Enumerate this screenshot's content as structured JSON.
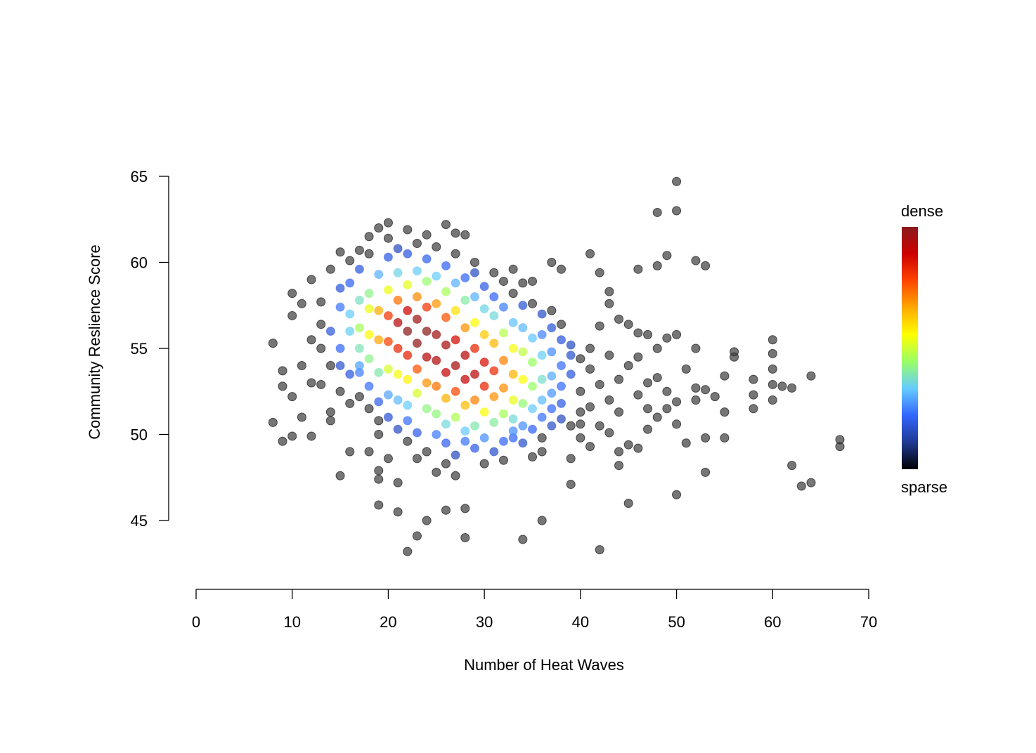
{
  "chart_data": {
    "type": "scatter",
    "title": "",
    "xlabel": "Number of Heat Waves",
    "ylabel": "Community Reslience Score",
    "xlim": [
      0,
      70
    ],
    "ylim": [
      45,
      65
    ],
    "x_ticks": [
      0,
      10,
      20,
      30,
      40,
      50,
      60,
      70
    ],
    "y_ticks": [
      45,
      50,
      55,
      60,
      65
    ],
    "x_tick_labels": [
      "0",
      "10",
      "20",
      "30",
      "40",
      "50",
      "60",
      "70"
    ],
    "y_tick_labels": [
      "45",
      "50",
      "55",
      "60",
      "65"
    ],
    "grid": false,
    "color_encoding": "point density",
    "legend": {
      "placement": "right",
      "top_label": "dense",
      "bottom_label": "sparse",
      "colors": [
        "#000000",
        "#1f3a93",
        "#3366ff",
        "#66ccff",
        "#99ff66",
        "#ffff00",
        "#ffaa00",
        "#ff4400",
        "#cc0000",
        "#8b1a1a"
      ]
    },
    "density_centers": [
      {
        "x": 22,
        "y": 56.5,
        "spread_x": 4,
        "spread_y": 2
      },
      {
        "x": 29,
        "y": 53.5,
        "spread_x": 5,
        "spread_y": 2.2
      }
    ],
    "points": [
      [
        8,
        55.3
      ],
      [
        8,
        50.7
      ],
      [
        9,
        53.7
      ],
      [
        9,
        52.8
      ],
      [
        9,
        49.6
      ],
      [
        10,
        58.2
      ],
      [
        10,
        56.9
      ],
      [
        10,
        52.2
      ],
      [
        10,
        49.9
      ],
      [
        11,
        57.6
      ],
      [
        11,
        51.0
      ],
      [
        12,
        59.0
      ],
      [
        12,
        49.9
      ],
      [
        13,
        57.7
      ],
      [
        14,
        59.6
      ],
      [
        14,
        50.8
      ],
      [
        15,
        60.6
      ],
      [
        15,
        47.6
      ],
      [
        16,
        60.1
      ],
      [
        16,
        49.0
      ],
      [
        17,
        60.7
      ],
      [
        18,
        61.5
      ],
      [
        19,
        62.0
      ],
      [
        19,
        47.9
      ],
      [
        19,
        47.4
      ],
      [
        19,
        45.9
      ],
      [
        20,
        62.3
      ],
      [
        21,
        47.2
      ],
      [
        21,
        45.5
      ],
      [
        22,
        61.9
      ],
      [
        22,
        43.2
      ],
      [
        23,
        44.1
      ],
      [
        24,
        61.6
      ],
      [
        24,
        45.0
      ],
      [
        26,
        62.2
      ],
      [
        26,
        45.6
      ],
      [
        27,
        61.7
      ],
      [
        28,
        61.6
      ],
      [
        28,
        45.7
      ],
      [
        28,
        44.0
      ],
      [
        29,
        60.0
      ],
      [
        31,
        59.4
      ],
      [
        33,
        59.6
      ],
      [
        34,
        43.9
      ],
      [
        36,
        45.0
      ],
      [
        37,
        60.0
      ],
      [
        38,
        59.6
      ],
      [
        39,
        48.6
      ],
      [
        39,
        47.1
      ],
      [
        41,
        60.5
      ],
      [
        42,
        59.4
      ],
      [
        42,
        56.3
      ],
      [
        42,
        43.3
      ],
      [
        43,
        58.3
      ],
      [
        43,
        57.6
      ],
      [
        44,
        56.7
      ],
      [
        44,
        48.2
      ],
      [
        45,
        56.4
      ],
      [
        45,
        46.0
      ],
      [
        46,
        59.6
      ],
      [
        46,
        55.9
      ],
      [
        47,
        55.8
      ],
      [
        48,
        62.9
      ],
      [
        48,
        59.8
      ],
      [
        48,
        55.0
      ],
      [
        49,
        60.4
      ],
      [
        49,
        55.6
      ],
      [
        50,
        64.7
      ],
      [
        50,
        63.0
      ],
      [
        50,
        55.8
      ],
      [
        50,
        51.9
      ],
      [
        50,
        50.6
      ],
      [
        50,
        46.5
      ],
      [
        51,
        53.8
      ],
      [
        51,
        49.5
      ],
      [
        52,
        55.0
      ],
      [
        52,
        52.7
      ],
      [
        52,
        52.0
      ],
      [
        53,
        59.8
      ],
      [
        53,
        52.6
      ],
      [
        53,
        49.8
      ],
      [
        53,
        47.8
      ],
      [
        54,
        52.2
      ],
      [
        55,
        53.4
      ],
      [
        55,
        51.3
      ],
      [
        55,
        49.8
      ],
      [
        56,
        54.8
      ],
      [
        56,
        54.5
      ],
      [
        58,
        53.2
      ],
      [
        58,
        52.3
      ],
      [
        58,
        51.5
      ],
      [
        60,
        55.5
      ],
      [
        60,
        54.7
      ],
      [
        60,
        53.8
      ],
      [
        60,
        52.9
      ],
      [
        60,
        52.0
      ],
      [
        61,
        52.8
      ],
      [
        62,
        52.7
      ],
      [
        62,
        48.2
      ],
      [
        63,
        47.0
      ],
      [
        64,
        53.4
      ],
      [
        64,
        47.2
      ],
      [
        67,
        49.7
      ],
      [
        67,
        49.3
      ],
      [
        52,
        60.1
      ],
      [
        47,
        50.3
      ],
      [
        46,
        49.2
      ],
      [
        44,
        49.0
      ],
      [
        40,
        49.8
      ],
      [
        41,
        49.3
      ],
      [
        45,
        49.4
      ],
      [
        36,
        49.0
      ],
      [
        35,
        48.7
      ],
      [
        32,
        48.5
      ],
      [
        30,
        48.3
      ],
      [
        27,
        47.6
      ],
      [
        25,
        47.8
      ],
      [
        23,
        48.6
      ],
      [
        20,
        48.6
      ],
      [
        18,
        49.0
      ],
      [
        16,
        53.5
      ],
      [
        15,
        55.0
      ],
      [
        14,
        54.0
      ],
      [
        13,
        52.9
      ],
      [
        12,
        55.5
      ],
      [
        11,
        54.0
      ],
      [
        12,
        53.0
      ],
      [
        13,
        56.4
      ],
      [
        15,
        57.4
      ],
      [
        16,
        58.8
      ],
      [
        17,
        59.6
      ],
      [
        18,
        60.5
      ],
      [
        20,
        61.4
      ],
      [
        23,
        61.1
      ],
      [
        25,
        60.9
      ],
      [
        27,
        60.5
      ],
      [
        29,
        59.4
      ],
      [
        32,
        58.9
      ],
      [
        34,
        58.8
      ],
      [
        35,
        58.9
      ],
      [
        37,
        57.2
      ],
      [
        38,
        56.4
      ],
      [
        39,
        55.2
      ],
      [
        40,
        54.4
      ],
      [
        41,
        53.8
      ],
      [
        42,
        52.9
      ],
      [
        43,
        52.0
      ],
      [
        44,
        51.3
      ],
      [
        46,
        52.3
      ],
      [
        47,
        53.0
      ],
      [
        48,
        53.3
      ],
      [
        49,
        52.5
      ],
      [
        43,
        54.6
      ],
      [
        45,
        54.0
      ],
      [
        44,
        53.2
      ],
      [
        46,
        54.5
      ],
      [
        47,
        51.5
      ],
      [
        48,
        51.0
      ],
      [
        49,
        51.5
      ],
      [
        42,
        50.5
      ],
      [
        43,
        50.1
      ],
      [
        40,
        51.3
      ],
      [
        39,
        50.5
      ],
      [
        38,
        51.8
      ],
      [
        37,
        50.5
      ],
      [
        36,
        49.8
      ],
      [
        34,
        49.5
      ],
      [
        33,
        50.2
      ],
      [
        31,
        49.0
      ],
      [
        29,
        49.2
      ],
      [
        27,
        48.8
      ],
      [
        26,
        48.3
      ],
      [
        24,
        49.0
      ],
      [
        22,
        49.6
      ],
      [
        21,
        50.3
      ],
      [
        19,
        50.8
      ],
      [
        18,
        51.5
      ],
      [
        17,
        52.2
      ],
      [
        16,
        51.8
      ],
      [
        15,
        52.5
      ],
      [
        14,
        51.3
      ],
      [
        15,
        54.0
      ],
      [
        16,
        56.0
      ],
      [
        14,
        56.0
      ],
      [
        13,
        55.0
      ],
      [
        15,
        58.5
      ],
      [
        17,
        57.8
      ],
      [
        18,
        58.2
      ],
      [
        19,
        59.3
      ],
      [
        20,
        60.3
      ],
      [
        21,
        60.8
      ],
      [
        22,
        60.5
      ],
      [
        24,
        60.2
      ],
      [
        26,
        59.8
      ],
      [
        28,
        59.1
      ],
      [
        30,
        58.6
      ],
      [
        31,
        58.0
      ],
      [
        33,
        58.2
      ],
      [
        34,
        57.5
      ],
      [
        35,
        57.6
      ],
      [
        36,
        57.0
      ],
      [
        37,
        56.2
      ],
      [
        38,
        55.5
      ],
      [
        39,
        54.6
      ],
      [
        39,
        53.5
      ],
      [
        40,
        52.5
      ],
      [
        41,
        51.6
      ],
      [
        40,
        50.6
      ],
      [
        38,
        50.9
      ],
      [
        37,
        51.5
      ],
      [
        36,
        51.0
      ],
      [
        35,
        50.3
      ],
      [
        33,
        49.8
      ],
      [
        32,
        49.6
      ],
      [
        30,
        49.8
      ],
      [
        28,
        49.6
      ],
      [
        26,
        49.5
      ],
      [
        25,
        50.0
      ],
      [
        23,
        50.1
      ],
      [
        22,
        50.8
      ],
      [
        20,
        51.0
      ],
      [
        19,
        51.9
      ],
      [
        18,
        52.8
      ],
      [
        17,
        53.6
      ],
      [
        17,
        55.0
      ],
      [
        17,
        56.2
      ],
      [
        18,
        57.3
      ],
      [
        18,
        55.8
      ],
      [
        18,
        54.4
      ],
      [
        19,
        57.2
      ],
      [
        19,
        55.5
      ],
      [
        19,
        53.6
      ],
      [
        20,
        58.4
      ],
      [
        20,
        56.9
      ],
      [
        20,
        55.4
      ],
      [
        20,
        53.8
      ],
      [
        20,
        52.3
      ],
      [
        21,
        59.4
      ],
      [
        21,
        57.8
      ],
      [
        21,
        56.5
      ],
      [
        21,
        55.0
      ],
      [
        21,
        53.5
      ],
      [
        21,
        52.0
      ],
      [
        22,
        58.7
      ],
      [
        22,
        57.2
      ],
      [
        22,
        56.0
      ],
      [
        22,
        54.6
      ],
      [
        22,
        53.2
      ],
      [
        22,
        51.7
      ],
      [
        23,
        59.5
      ],
      [
        23,
        58.0
      ],
      [
        23,
        56.7
      ],
      [
        23,
        55.3
      ],
      [
        23,
        53.8
      ],
      [
        23,
        52.4
      ],
      [
        24,
        58.9
      ],
      [
        24,
        57.4
      ],
      [
        24,
        56.0
      ],
      [
        24,
        54.5
      ],
      [
        24,
        53.0
      ],
      [
        24,
        51.5
      ],
      [
        25,
        59.2
      ],
      [
        25,
        57.6
      ],
      [
        25,
        55.8
      ],
      [
        25,
        54.3
      ],
      [
        25,
        52.8
      ],
      [
        25,
        51.2
      ],
      [
        26,
        58.3
      ],
      [
        26,
        56.8
      ],
      [
        26,
        55.2
      ],
      [
        26,
        53.6
      ],
      [
        26,
        52.1
      ],
      [
        26,
        50.6
      ],
      [
        27,
        58.8
      ],
      [
        27,
        57.2
      ],
      [
        27,
        55.5
      ],
      [
        27,
        54.0
      ],
      [
        27,
        52.5
      ],
      [
        27,
        51.0
      ],
      [
        28,
        57.8
      ],
      [
        28,
        56.2
      ],
      [
        28,
        54.6
      ],
      [
        28,
        53.2
      ],
      [
        28,
        51.7
      ],
      [
        28,
        50.2
      ],
      [
        29,
        58.0
      ],
      [
        29,
        56.5
      ],
      [
        29,
        55.0
      ],
      [
        29,
        53.5
      ],
      [
        29,
        52.0
      ],
      [
        29,
        50.5
      ],
      [
        30,
        57.3
      ],
      [
        30,
        55.8
      ],
      [
        30,
        54.2
      ],
      [
        30,
        52.8
      ],
      [
        30,
        51.3
      ],
      [
        31,
        56.9
      ],
      [
        31,
        55.3
      ],
      [
        31,
        53.7
      ],
      [
        31,
        52.2
      ],
      [
        31,
        50.7
      ],
      [
        32,
        57.4
      ],
      [
        32,
        55.9
      ],
      [
        32,
        54.3
      ],
      [
        32,
        52.7
      ],
      [
        32,
        51.2
      ],
      [
        33,
        56.5
      ],
      [
        33,
        55.0
      ],
      [
        33,
        53.5
      ],
      [
        33,
        52.0
      ],
      [
        33,
        50.9
      ],
      [
        34,
        56.2
      ],
      [
        34,
        54.8
      ],
      [
        34,
        53.2
      ],
      [
        34,
        51.8
      ],
      [
        34,
        50.5
      ],
      [
        35,
        55.6
      ],
      [
        35,
        54.2
      ],
      [
        35,
        52.8
      ],
      [
        35,
        51.5
      ],
      [
        36,
        55.8
      ],
      [
        36,
        54.6
      ],
      [
        36,
        53.2
      ],
      [
        36,
        52.0
      ],
      [
        37,
        54.8
      ],
      [
        37,
        53.4
      ],
      [
        37,
        52.4
      ],
      [
        38,
        54.0
      ],
      [
        38,
        52.8
      ],
      [
        17,
        54.0
      ],
      [
        16,
        57.0
      ],
      [
        19,
        50.0
      ],
      [
        41,
        55.0
      ]
    ]
  }
}
